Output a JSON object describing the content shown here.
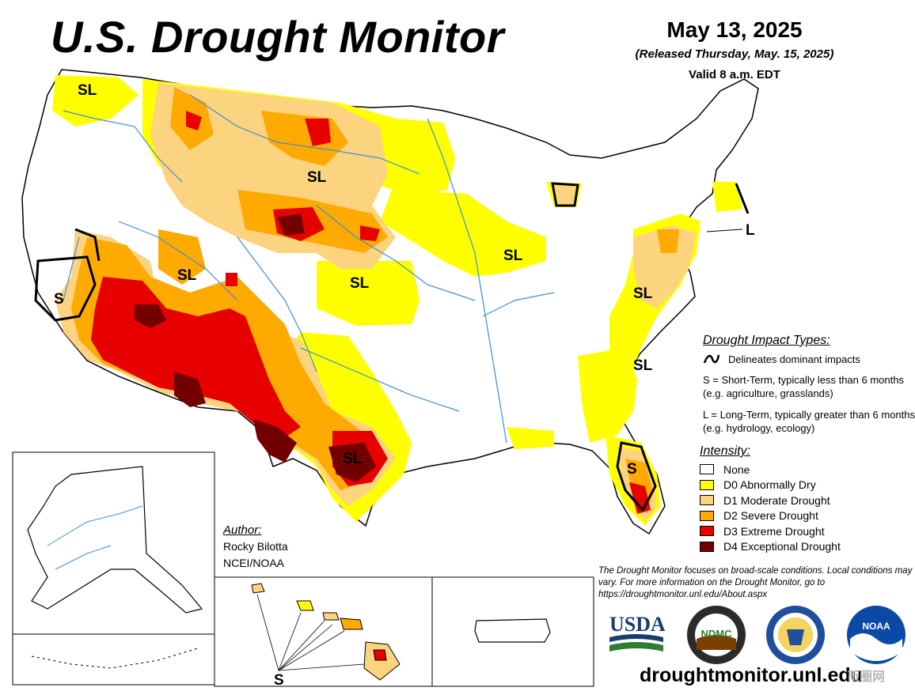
{
  "header": {
    "title": "U.S. Drought Monitor",
    "date": "May 13, 2025",
    "released": "(Released Thursday, May. 15, 2025)",
    "valid": "Valid 8 a.m. EDT"
  },
  "map_labels": {
    "sl_pacnw": "SL",
    "sl_montana": "SL",
    "sl_utah": "SL",
    "sl_kansas": "SL",
    "sl_illinois": "SL",
    "sl_virginia": "SL",
    "sl_carolina": "SL",
    "sl_texas": "SL",
    "s_california": "S",
    "s_florida": "S",
    "l_newengland": "L",
    "s_hawaii": "S"
  },
  "impact_types": {
    "heading": "Drought Impact Types:",
    "delineates": "Delineates dominant impacts",
    "short_term": "S = Short-Term, typically less than 6 months (e.g. agriculture, grasslands)",
    "long_term": "L = Long-Term, typically greater than 6 months (e.g. hydrology, ecology)"
  },
  "intensity": {
    "heading": "Intensity:",
    "items": [
      {
        "label": "None",
        "color": "#ffffff"
      },
      {
        "label": "D0 Abnormally Dry",
        "color": "#ffff00"
      },
      {
        "label": "D1 Moderate Drought",
        "color": "#fcd37f"
      },
      {
        "label": "D2 Severe Drought",
        "color": "#ffaa00"
      },
      {
        "label": "D3 Extreme Drought",
        "color": "#e60000"
      },
      {
        "label": "D4 Exceptional Drought",
        "color": "#730000"
      }
    ]
  },
  "author": {
    "heading": "Author:",
    "name": "Rocky Bilotta",
    "org": "NCEI/NOAA"
  },
  "note": "The Drought Monitor focuses on broad-scale conditions. Local conditions may vary. For more information on the Drought Monitor, go to https://droughtmonitor.unl.edu/About.aspx",
  "website": "droughtmonitor.unl.edu",
  "logos": {
    "usda": "USDA",
    "ndmc": "NDMC",
    "noaa": "NOAA"
  },
  "watermark": "币圈网"
}
